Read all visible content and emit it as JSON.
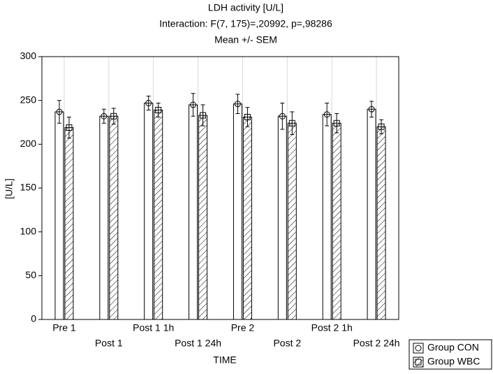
{
  "chart_data": {
    "type": "bar",
    "title": "LDH activity [U/L]",
    "subtitle": "Interaction: F(7, 175)=,20992, p=,98286",
    "note": "Mean +/- SEM",
    "x_label": "TIME",
    "y_label": "[U/L]",
    "categories": [
      "Pre 1",
      "Post 1",
      "Post 1 1h",
      "Post 1 24h",
      "Pre 2",
      "Post 2",
      "Post 2 1h",
      "Post 2 24h"
    ],
    "series": [
      {
        "name": "Group CON",
        "color": "#ffffff",
        "hatch": false,
        "marker": "circle",
        "values": [
          237,
          232,
          247,
          245,
          246,
          232,
          234,
          240
        ],
        "errors": [
          13,
          8,
          8,
          13,
          11,
          15,
          13,
          9
        ]
      },
      {
        "name": "Group WBC",
        "color": "#ffffff",
        "hatch": true,
        "marker": "square",
        "values": [
          219,
          232,
          239,
          233,
          231,
          224,
          224,
          220
        ],
        "errors": [
          12,
          9,
          8,
          12,
          11,
          13,
          11,
          8
        ]
      }
    ],
    "ylim": [
      0,
      300
    ],
    "yticks": [
      0,
      50,
      100,
      150,
      200,
      250,
      300
    ],
    "grid": true,
    "legend": "bottom-right"
  }
}
